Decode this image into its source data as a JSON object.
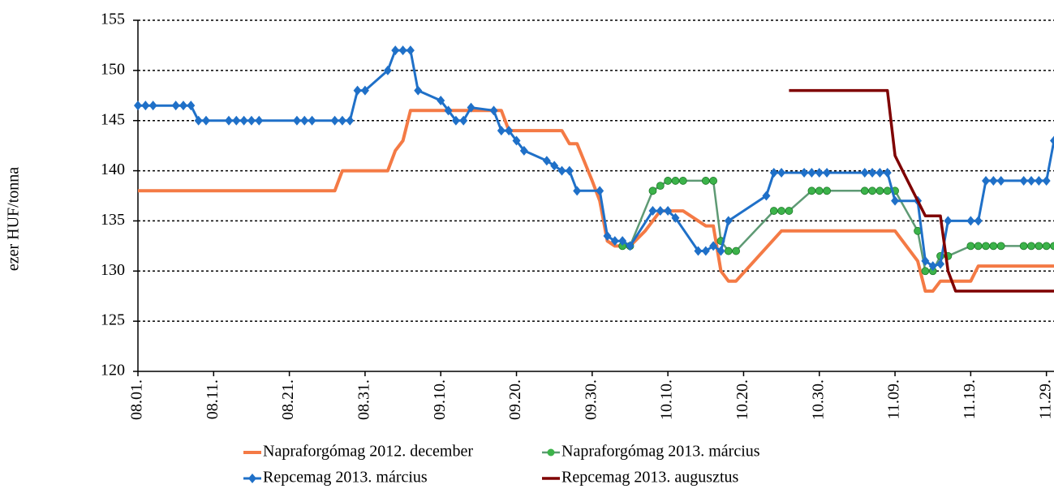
{
  "chart_data": {
    "type": "line",
    "y_label": "ezer HUF/tonna",
    "xlim": [
      "08.01.",
      "11.30."
    ],
    "xticks": [
      "08.01.",
      "08.11.",
      "08.21.",
      "08.31.",
      "09.10.",
      "09.20.",
      "09.30.",
      "10.10.",
      "10.20.",
      "10.30.",
      "11.09.",
      "11.19.",
      "11.29."
    ],
    "ylim": [
      120,
      155
    ],
    "yticks": [
      120,
      125,
      130,
      135,
      140,
      145,
      150,
      155
    ],
    "grid": true,
    "legend": "bottom",
    "series": [
      {
        "name": "Napraforgómag 2012. december",
        "color": "#f47a45",
        "width": 4,
        "x": [
          "08.01.",
          "08.27.",
          "08.28.",
          "09.03.",
          "09.04.",
          "09.05.",
          "09.06.",
          "09.18.",
          "09.19.",
          "09.26.",
          "09.27.",
          "09.28.",
          "09.30.",
          "10.01.",
          "10.02.",
          "10.03.",
          "10.05.",
          "10.07.",
          "10.09.",
          "10.12.",
          "10.15.",
          "10.16.",
          "10.17.",
          "10.18.",
          "10.19.",
          "10.25.",
          "11.09.",
          "11.12.",
          "11.13.",
          "11.14.",
          "11.15.",
          "11.19.",
          "11.20.",
          "11.30."
        ],
        "values": [
          138,
          138,
          140,
          140,
          142,
          143,
          146,
          146,
          144,
          144,
          142.7,
          142.7,
          139,
          137,
          133,
          132.5,
          132.5,
          134,
          136,
          136,
          134.5,
          134.5,
          130,
          129,
          129,
          134,
          134,
          131,
          128,
          128,
          129,
          129,
          130.5,
          130.5
        ]
      },
      {
        "name": "Napraforgómag 2013. március",
        "color": "#5e9a74",
        "marker": "circle",
        "marker_color": "#3cb34a",
        "width": 2.5,
        "x": [
          "10.04.",
          "10.05.",
          "10.08.",
          "10.09.",
          "10.10.",
          "10.11.",
          "10.12.",
          "10.15.",
          "10.16.",
          "10.17.",
          "10.18.",
          "10.19.",
          "10.24.",
          "10.25.",
          "10.26.",
          "10.29.",
          "10.30.",
          "10.31.",
          "11.05.",
          "11.06.",
          "11.07.",
          "11.08.",
          "11.09.",
          "11.12.",
          "11.13.",
          "11.14.",
          "11.15.",
          "11.16.",
          "11.19.",
          "11.20.",
          "11.21.",
          "11.22.",
          "11.23.",
          "11.26.",
          "11.27.",
          "11.28.",
          "11.29.",
          "11.30."
        ],
        "values": [
          132.5,
          132.5,
          138,
          138.5,
          139,
          139,
          139,
          139,
          139,
          133,
          132,
          132,
          136,
          136,
          136,
          138,
          138,
          138,
          138,
          138,
          138,
          138,
          138,
          134,
          130,
          130,
          131.5,
          131.5,
          132.5,
          132.5,
          132.5,
          132.5,
          132.5,
          132.5,
          132.5,
          132.5,
          132.5,
          132.5
        ]
      },
      {
        "name": "Repcemag 2013. március",
        "color": "#1f70c8",
        "marker": "diamond",
        "marker_color": "#1f70c8",
        "width": 3,
        "x": [
          "08.01.",
          "08.02.",
          "08.03.",
          "08.06.",
          "08.07.",
          "08.08.",
          "08.09.",
          "08.10.",
          "08.13.",
          "08.14.",
          "08.15.",
          "08.16.",
          "08.17.",
          "08.22.",
          "08.23.",
          "08.24.",
          "08.27.",
          "08.28.",
          "08.29.",
          "08.30.",
          "08.31.",
          "09.03.",
          "09.04.",
          "09.05.",
          "09.06.",
          "09.07.",
          "09.10.",
          "09.11.",
          "09.12.",
          "09.13.",
          "09.14.",
          "09.17.",
          "09.18.",
          "09.19.",
          "09.20.",
          "09.21.",
          "09.24.",
          "09.25.",
          "09.26.",
          "09.27.",
          "09.28.",
          "10.01.",
          "10.02.",
          "10.03.",
          "10.04.",
          "10.05.",
          "10.08.",
          "10.09.",
          "10.10.",
          "10.11.",
          "10.14.",
          "10.15.",
          "10.16.",
          "10.17.",
          "10.18.",
          "10.23.",
          "10.24.",
          "10.25.",
          "10.28.",
          "10.29.",
          "10.30.",
          "10.31.",
          "11.05.",
          "11.06.",
          "11.07.",
          "11.08.",
          "11.09.",
          "11.12.",
          "11.13.",
          "11.14.",
          "11.15.",
          "11.16.",
          "11.19.",
          "11.20.",
          "11.21.",
          "11.22.",
          "11.23.",
          "11.26.",
          "11.27.",
          "11.28.",
          "11.29.",
          "11.30."
        ],
        "values": [
          146.5,
          146.5,
          146.5,
          146.5,
          146.5,
          146.5,
          145,
          145,
          145,
          145,
          145,
          145,
          145,
          145,
          145,
          145,
          145,
          145,
          145,
          148,
          148,
          150,
          152,
          152,
          152,
          148,
          147,
          146,
          145,
          145,
          146.3,
          146,
          144,
          144,
          143,
          142,
          141,
          140.5,
          140,
          140,
          138,
          138,
          133.5,
          133,
          133,
          132.5,
          136,
          136,
          136,
          135.3,
          132,
          132,
          132.5,
          132,
          135,
          137.5,
          139.8,
          139.8,
          139.8,
          139.8,
          139.8,
          139.8,
          139.8,
          139.8,
          139.8,
          139.8,
          137,
          137,
          131,
          130.5,
          130.7,
          135,
          135,
          135,
          139,
          139,
          139,
          139,
          139,
          139,
          139,
          143
        ]
      },
      {
        "name": "Repcemag 2013. augusztus",
        "color": "#7f0000",
        "width": 3.5,
        "x": [
          "10.26.",
          "11.08.",
          "11.09.",
          "11.10.",
          "11.13.",
          "11.15.",
          "11.16.",
          "11.17.",
          "11.30."
        ],
        "values": [
          148,
          148,
          141.5,
          140,
          135.5,
          135.5,
          130,
          128,
          128
        ]
      }
    ]
  }
}
